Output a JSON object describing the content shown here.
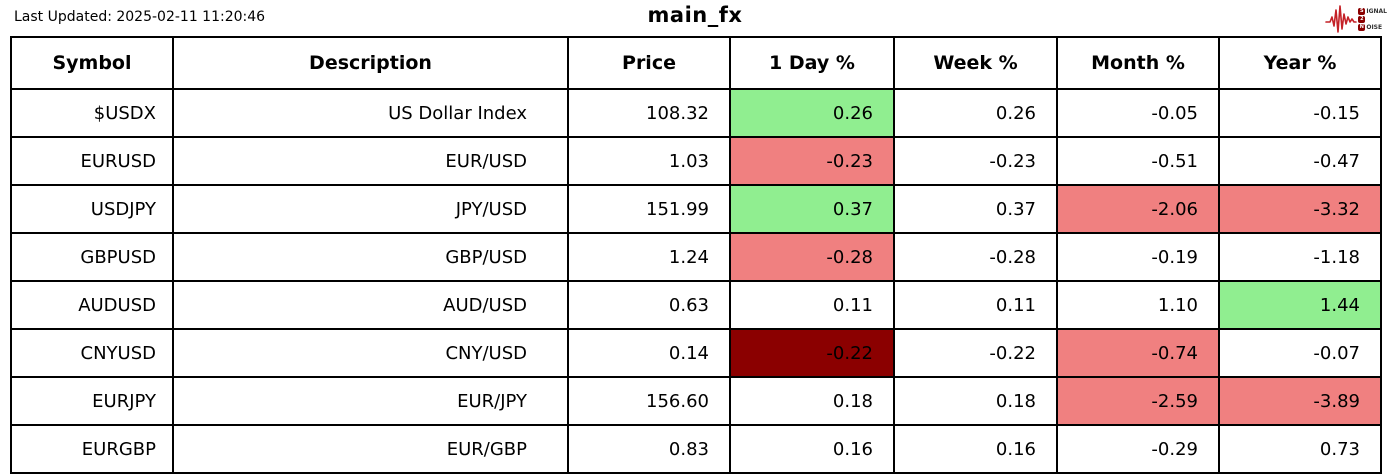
{
  "header": {
    "last_updated": "Last Updated: 2025-02-11 11:20:46",
    "title": "main_fx",
    "logo": {
      "line1_letter": "S",
      "line1_rest": "IGNAL",
      "line2_letter": "2",
      "line2_rest": "",
      "line3_letter": "N",
      "line3_rest": "OISE",
      "wave_color": "#c42127",
      "box_color": "#8B0000"
    }
  },
  "table": {
    "columns": [
      "Symbol",
      "Description",
      "Price",
      "1 Day %",
      "Week %",
      "Month %",
      "Year %"
    ],
    "column_keys": [
      "symbol",
      "description",
      "price",
      "day-pct",
      "week-pct",
      "month-pct",
      "year-pct"
    ],
    "colors": {
      "green": "#90EE90",
      "red": "#F08080",
      "darkred": "#8B0000"
    },
    "rows": [
      {
        "cells": [
          {
            "v": "$USDX"
          },
          {
            "v": "US Dollar Index"
          },
          {
            "v": "108.32"
          },
          {
            "v": "0.26",
            "bg": "green"
          },
          {
            "v": "0.26"
          },
          {
            "v": "-0.05"
          },
          {
            "v": "-0.15"
          }
        ]
      },
      {
        "cells": [
          {
            "v": "EURUSD"
          },
          {
            "v": "EUR/USD"
          },
          {
            "v": "1.03"
          },
          {
            "v": "-0.23",
            "bg": "red"
          },
          {
            "v": "-0.23"
          },
          {
            "v": "-0.51"
          },
          {
            "v": "-0.47"
          }
        ]
      },
      {
        "cells": [
          {
            "v": "USDJPY"
          },
          {
            "v": "JPY/USD"
          },
          {
            "v": "151.99"
          },
          {
            "v": "0.37",
            "bg": "green"
          },
          {
            "v": "0.37"
          },
          {
            "v": "-2.06",
            "bg": "red"
          },
          {
            "v": "-3.32",
            "bg": "red"
          }
        ]
      },
      {
        "cells": [
          {
            "v": "GBPUSD"
          },
          {
            "v": "GBP/USD"
          },
          {
            "v": "1.24"
          },
          {
            "v": "-0.28",
            "bg": "red"
          },
          {
            "v": "-0.28"
          },
          {
            "v": "-0.19"
          },
          {
            "v": "-1.18"
          }
        ]
      },
      {
        "cells": [
          {
            "v": "AUDUSD"
          },
          {
            "v": "AUD/USD"
          },
          {
            "v": "0.63"
          },
          {
            "v": "0.11"
          },
          {
            "v": "0.11"
          },
          {
            "v": "1.10"
          },
          {
            "v": "1.44",
            "bg": "green"
          }
        ]
      },
      {
        "cells": [
          {
            "v": "CNYUSD"
          },
          {
            "v": "CNY/USD"
          },
          {
            "v": "0.14"
          },
          {
            "v": "-0.22",
            "bg": "darkred"
          },
          {
            "v": "-0.22"
          },
          {
            "v": "-0.74",
            "bg": "red"
          },
          {
            "v": "-0.07"
          }
        ]
      },
      {
        "cells": [
          {
            "v": "EURJPY"
          },
          {
            "v": "EUR/JPY"
          },
          {
            "v": "156.60"
          },
          {
            "v": "0.18"
          },
          {
            "v": "0.18"
          },
          {
            "v": "-2.59",
            "bg": "red"
          },
          {
            "v": "-3.89",
            "bg": "red"
          }
        ]
      },
      {
        "cells": [
          {
            "v": "EURGBP"
          },
          {
            "v": "EUR/GBP"
          },
          {
            "v": "0.83"
          },
          {
            "v": "0.16"
          },
          {
            "v": "0.16"
          },
          {
            "v": "-0.29"
          },
          {
            "v": "0.73"
          }
        ]
      }
    ]
  },
  "chart_data": {
    "type": "table",
    "title": "main_fx",
    "last_updated": "2025-02-11 11:20:46",
    "columns": [
      "Symbol",
      "Description",
      "Price",
      "1 Day %",
      "Week %",
      "Month %",
      "Year %"
    ],
    "rows": [
      [
        "$USDX",
        "US Dollar Index",
        108.32,
        0.26,
        0.26,
        -0.05,
        -0.15
      ],
      [
        "EURUSD",
        "EUR/USD",
        1.03,
        -0.23,
        -0.23,
        -0.51,
        -0.47
      ],
      [
        "USDJPY",
        "JPY/USD",
        151.99,
        0.37,
        0.37,
        -2.06,
        -3.32
      ],
      [
        "GBPUSD",
        "GBP/USD",
        1.24,
        -0.28,
        -0.28,
        -0.19,
        -1.18
      ],
      [
        "AUDUSD",
        "AUD/USD",
        0.63,
        0.11,
        0.11,
        1.1,
        1.44
      ],
      [
        "CNYUSD",
        "CNY/USD",
        0.14,
        -0.22,
        -0.22,
        -0.74,
        -0.07
      ],
      [
        "EURJPY",
        "EUR/JPY",
        156.6,
        0.18,
        0.18,
        -2.59,
        -3.89
      ],
      [
        "EURGBP",
        "EUR/GBP",
        0.83,
        0.16,
        0.16,
        -0.29,
        0.73
      ]
    ],
    "highlighted_cells": [
      {
        "row": "$USDX",
        "column": "1 Day %",
        "color": "green"
      },
      {
        "row": "EURUSD",
        "column": "1 Day %",
        "color": "red"
      },
      {
        "row": "USDJPY",
        "column": "1 Day %",
        "color": "green"
      },
      {
        "row": "USDJPY",
        "column": "Month %",
        "color": "red"
      },
      {
        "row": "USDJPY",
        "column": "Year %",
        "color": "red"
      },
      {
        "row": "GBPUSD",
        "column": "1 Day %",
        "color": "red"
      },
      {
        "row": "AUDUSD",
        "column": "Year %",
        "color": "green"
      },
      {
        "row": "CNYUSD",
        "column": "1 Day %",
        "color": "darkred"
      },
      {
        "row": "CNYUSD",
        "column": "Month %",
        "color": "red"
      },
      {
        "row": "EURJPY",
        "column": "Month %",
        "color": "red"
      },
      {
        "row": "EURJPY",
        "column": "Year %",
        "color": "red"
      }
    ]
  }
}
